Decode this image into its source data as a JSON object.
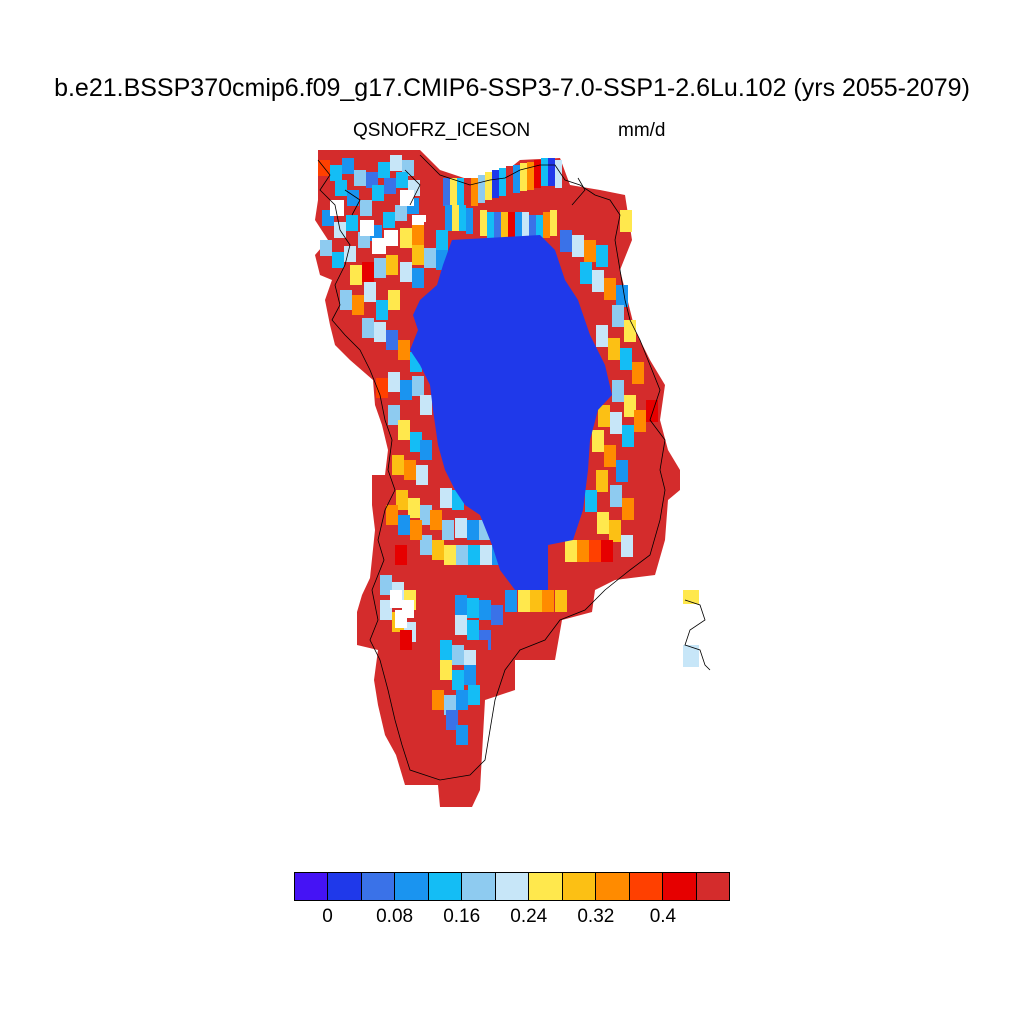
{
  "title": "b.e21.BSSP370cmip6.f09_g17.CMIP6-SSP3-7.0-SSP1-2.6Lu.102 (yrs 2055-2079)",
  "subtitle": {
    "variable": "QSNOFRZ_ICE",
    "season": "SON",
    "units": "mm/d"
  },
  "colorbar": {
    "colors": [
      "#4513f5",
      "#1f39ea",
      "#3a72e8",
      "#1a94f0",
      "#14bdf5",
      "#8ecbf0",
      "#c7e6f8",
      "#ffe84d",
      "#fcc014",
      "#ff8b00",
      "#ff4000",
      "#e60000",
      "#d42c2c"
    ],
    "labels": [
      "0",
      "0.08",
      "0.16",
      "0.24",
      "0.32",
      "0.4"
    ]
  },
  "map": {
    "region": "Greenland",
    "interior_color": "#1f39ea",
    "coast_color": "#d42c2c"
  }
}
